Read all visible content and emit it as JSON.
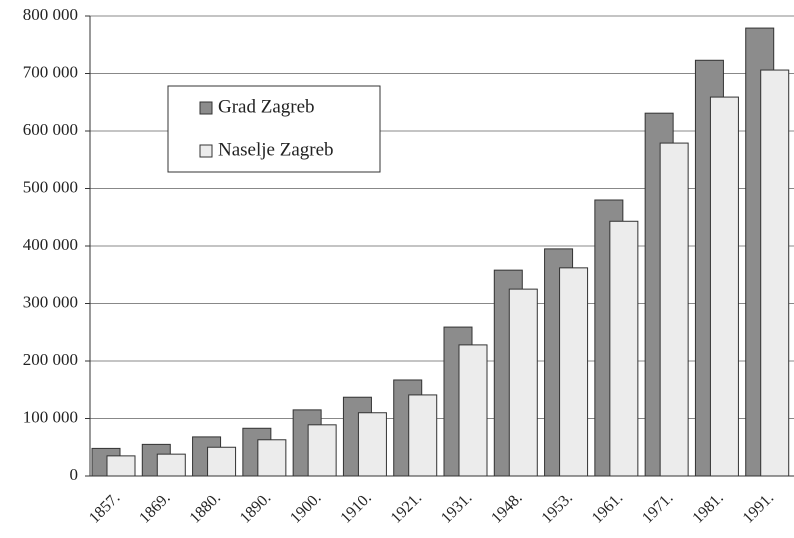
{
  "chart_data": {
    "type": "bar",
    "categories": [
      "1857.",
      "1869.",
      "1880.",
      "1890.",
      "1900.",
      "1910.",
      "1921.",
      "1931.",
      "1948.",
      "1953.",
      "1961.",
      "1971.",
      "1981.",
      "1991."
    ],
    "series": [
      {
        "name": "Grad Zagreb",
        "color": "#8c8c8c",
        "values": [
          48000,
          55000,
          68000,
          83000,
          115000,
          137000,
          167000,
          259000,
          358000,
          395000,
          480000,
          631000,
          723000,
          779000
        ]
      },
      {
        "name": "Naselje Zagreb",
        "color": "#ececec",
        "values": [
          35000,
          38000,
          50000,
          63000,
          89000,
          110000,
          141000,
          228000,
          325000,
          362000,
          443000,
          579000,
          659000,
          706000
        ]
      }
    ],
    "ylim": [
      0,
      800000
    ],
    "yticks": [
      0,
      {
        "value": 100000,
        "label": "100 000"
      },
      {
        "value": 200000,
        "label": "200 000"
      },
      {
        "value": 300000,
        "label": "300 000"
      },
      {
        "value": 400000,
        "label": "400 000"
      },
      {
        "value": 500000,
        "label": "500 000"
      },
      {
        "value": 600000,
        "label": "600 000"
      },
      {
        "value": 700000,
        "label": "700 000"
      },
      {
        "value": 800000,
        "label": "800 000"
      }
    ],
    "grid": true,
    "legend": "upper left"
  }
}
